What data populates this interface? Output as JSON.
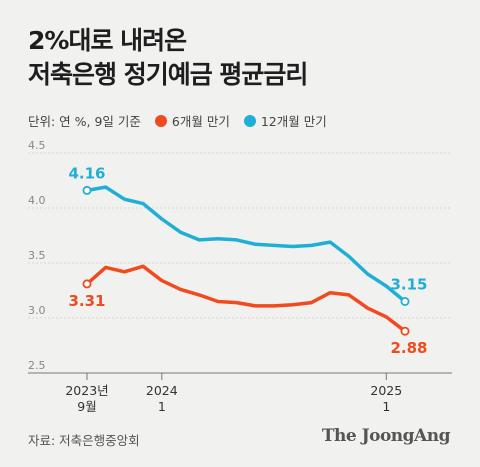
{
  "title": {
    "line1": "2%대로 내려온",
    "line2": "저축은행 정기예금 평균금리"
  },
  "legend": {
    "unit_note": "단위: 연 %, 9일 기준",
    "items": [
      {
        "label": "6개월 만기",
        "color": "#f04a1e"
      },
      {
        "label": "12개월 만기",
        "color": "#1fafd6"
      }
    ]
  },
  "source": "자료: 저축은행중앙회",
  "brand": "The JoongAng",
  "chart_data": {
    "type": "line",
    "ylim": [
      2.5,
      4.5
    ],
    "yticks": [
      "4.5",
      "4.0",
      "3.5",
      "3.0",
      "2.5"
    ],
    "xtick_labels": [
      {
        "line1": "2023년",
        "line2": "9월"
      },
      {
        "line1": "2024",
        "line2": "1"
      },
      {
        "line1": "2025",
        "line2": "1"
      }
    ],
    "x": [
      "2023-09",
      "2023-10",
      "2023-11",
      "2023-12",
      "2024-01",
      "2024-02",
      "2024-03",
      "2024-04",
      "2024-05",
      "2024-06",
      "2024-07",
      "2024-08",
      "2024-09",
      "2024-10",
      "2024-11",
      "2024-12",
      "2025-01",
      "2025-02"
    ],
    "series": [
      {
        "name": "12개월 만기",
        "color": "#1fafd6",
        "values": [
          4.16,
          4.19,
          4.08,
          4.04,
          3.9,
          3.78,
          3.71,
          3.72,
          3.71,
          3.67,
          3.66,
          3.65,
          3.66,
          3.69,
          3.56,
          3.4,
          3.29,
          3.15
        ],
        "end_labels": {
          "start": "4.16",
          "end": "3.15"
        }
      },
      {
        "name": "6개월 만기",
        "color": "#f04a1e",
        "values": [
          3.31,
          3.46,
          3.42,
          3.47,
          3.34,
          3.26,
          3.21,
          3.15,
          3.14,
          3.11,
          3.11,
          3.12,
          3.14,
          3.23,
          3.21,
          3.09,
          3.01,
          2.88
        ],
        "end_labels": {
          "start": "3.31",
          "end": "2.88"
        }
      }
    ]
  }
}
